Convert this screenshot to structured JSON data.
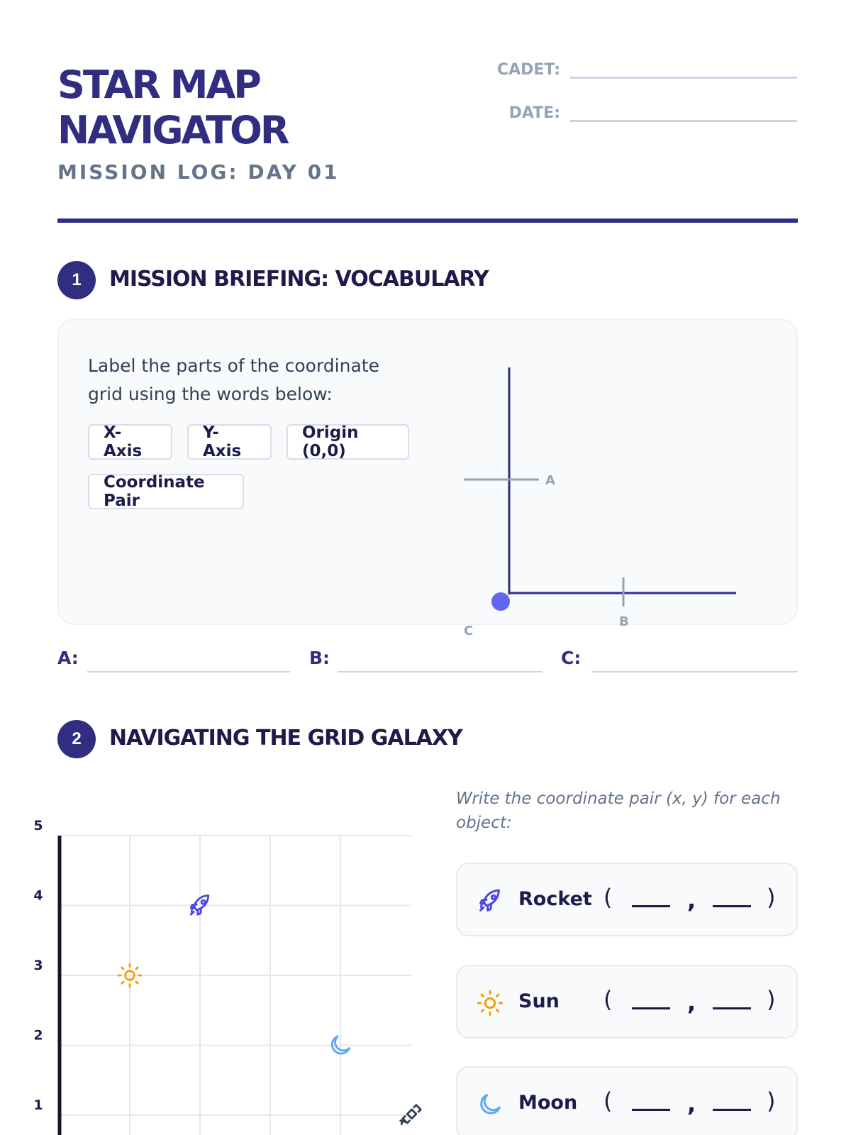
{
  "header": {
    "title_line1": "STAR MAP",
    "title_line2": "NAVIGATOR",
    "subtitle": "MISSION LOG: DAY 01",
    "cadet_label": "CADET:",
    "date_label": "DATE:"
  },
  "section1": {
    "number": "1",
    "title": "MISSION BRIEFING: VOCABULARY",
    "instruction": "Label the parts of the coordinate grid using the words below:",
    "word_bank": [
      "X-Axis",
      "Y-Axis",
      "Origin (0,0)",
      "Coordinate Pair"
    ],
    "diagram_labels": {
      "a": "A",
      "b": "B",
      "c": "C"
    },
    "answers": [
      {
        "label": "A:"
      },
      {
        "label": "B:"
      },
      {
        "label": "C:"
      }
    ]
  },
  "section2": {
    "number": "2",
    "title": "NAVIGATING THE GRID GALAXY",
    "instruction": "Write the coordinate pair (x, y) for each object:",
    "grid": {
      "y_ticks": [
        "5",
        "4",
        "3",
        "2",
        "1"
      ],
      "objects": [
        {
          "icon": "rocket-icon",
          "x": 2,
          "y": 4,
          "color": "#4f46e5"
        },
        {
          "icon": "sun-icon",
          "x": 1,
          "y": 3,
          "color": "#f59e0b"
        },
        {
          "icon": "moon-icon",
          "x": 4,
          "y": 2,
          "color": "#60a5fa"
        },
        {
          "icon": "satellite-icon",
          "x": 5,
          "y": 1,
          "color": "#334155"
        }
      ]
    },
    "objects": [
      {
        "name": "Rocket",
        "icon": "rocket-icon",
        "color": "#4f46e5"
      },
      {
        "name": "Sun",
        "icon": "sun-icon",
        "color": "#f59e0b"
      },
      {
        "name": "Moon",
        "icon": "moon-icon",
        "color": "#60a5fa"
      }
    ],
    "open_paren": "(",
    "close_paren": ")",
    "comma": ","
  },
  "colors": {
    "primary": "#312e81",
    "accent": "#6366f1",
    "muted": "#94a3b8"
  }
}
